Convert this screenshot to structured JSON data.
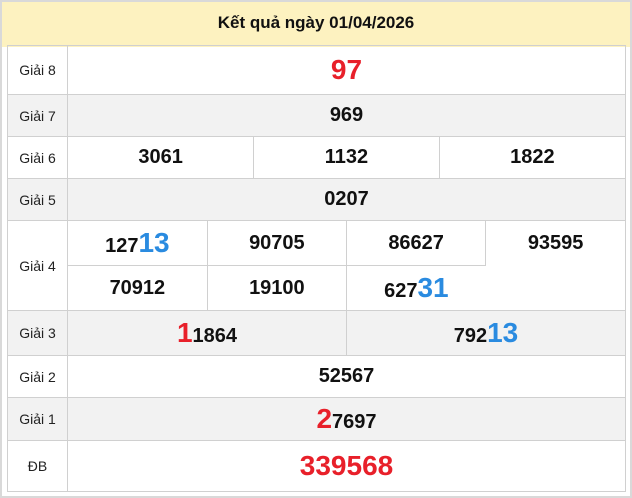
{
  "title": "Kết quả ngày 01/04/2026",
  "colors": {
    "header_bg": "#fdf2c0",
    "red": "#e8202a",
    "blue": "#2a8be0"
  },
  "rows": [
    {
      "label": "Giải 8",
      "numbers": [
        [
          {
            "t": "97",
            "c": "red-big"
          }
        ]
      ]
    },
    {
      "label": "Giải 7",
      "numbers": [
        [
          {
            "t": "969",
            "c": ""
          }
        ]
      ]
    },
    {
      "label": "Giải 6",
      "numbers": [
        [
          {
            "t": "3061",
            "c": ""
          }
        ],
        [
          {
            "t": "1132",
            "c": ""
          }
        ],
        [
          {
            "t": "1822",
            "c": ""
          }
        ]
      ]
    },
    {
      "label": "Giải 5",
      "numbers": [
        [
          {
            "t": "0207",
            "c": ""
          }
        ]
      ]
    },
    {
      "label": "Giải 4",
      "line1": [
        [
          {
            "t": "127",
            "c": ""
          },
          {
            "t": "13",
            "c": "blue"
          }
        ],
        [
          {
            "t": "90705",
            "c": ""
          }
        ],
        [
          {
            "t": "86627",
            "c": ""
          }
        ],
        [
          {
            "t": "93595",
            "c": ""
          }
        ]
      ],
      "line2": [
        [
          {
            "t": "70912",
            "c": ""
          }
        ],
        [
          {
            "t": "19100",
            "c": ""
          }
        ],
        [
          {
            "t": "627",
            "c": ""
          },
          {
            "t": "31",
            "c": "blue"
          }
        ]
      ]
    },
    {
      "label": "Giải 3",
      "numbers": [
        [
          {
            "t": "1",
            "c": "red"
          },
          {
            "t": "1864",
            "c": ""
          }
        ],
        [
          {
            "t": "792",
            "c": ""
          },
          {
            "t": "13",
            "c": "blue"
          }
        ]
      ]
    },
    {
      "label": "Giải 2",
      "numbers": [
        [
          {
            "t": "52567",
            "c": ""
          }
        ]
      ]
    },
    {
      "label": "Giải 1",
      "numbers": [
        [
          {
            "t": "2",
            "c": "red"
          },
          {
            "t": "7697",
            "c": ""
          }
        ]
      ]
    },
    {
      "label": "ĐB",
      "numbers": [
        [
          {
            "t": "339568",
            "c": "red-big"
          }
        ]
      ]
    }
  ]
}
